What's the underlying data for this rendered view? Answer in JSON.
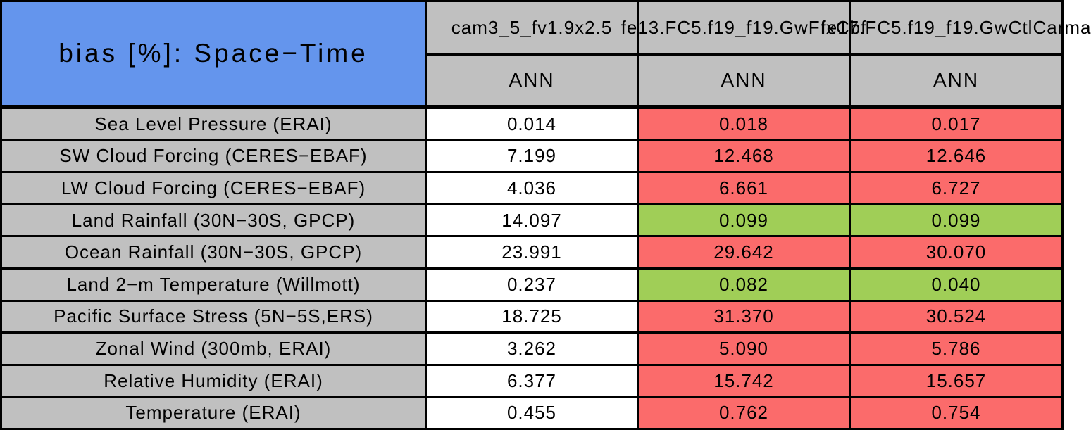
{
  "chart_data": {
    "type": "table",
    "title": "bias [%]: Space−Time",
    "units": "%",
    "column_headers": [
      "cam3_5_fv1.9x2.5",
      "fe13.FC5.f19_f19.GwFfxCbf",
      "fe17.FC5.f19_f19.GwCtlCarma"
    ],
    "season_row": [
      "ANN",
      "ANN",
      "ANN"
    ],
    "rows": [
      {
        "label": "Sea Level Pressure (ERAI)",
        "values": [
          "0.014",
          "0.018",
          "0.017"
        ],
        "cell_colors": [
          "white",
          "red",
          "red"
        ]
      },
      {
        "label": "SW Cloud Forcing (CERES−EBAF)",
        "values": [
          "7.199",
          "12.468",
          "12.646"
        ],
        "cell_colors": [
          "white",
          "red",
          "red"
        ]
      },
      {
        "label": "LW Cloud Forcing (CERES−EBAF)",
        "values": [
          "4.036",
          "6.661",
          "6.727"
        ],
        "cell_colors": [
          "white",
          "red",
          "red"
        ]
      },
      {
        "label": "Land Rainfall (30N−30S, GPCP)",
        "values": [
          "14.097",
          "0.099",
          "0.099"
        ],
        "cell_colors": [
          "white",
          "green",
          "green"
        ]
      },
      {
        "label": "Ocean Rainfall (30N−30S, GPCP)",
        "values": [
          "23.991",
          "29.642",
          "30.070"
        ],
        "cell_colors": [
          "white",
          "red",
          "red"
        ]
      },
      {
        "label": "Land 2−m Temperature (Willmott)",
        "values": [
          "0.237",
          "0.082",
          "0.040"
        ],
        "cell_colors": [
          "white",
          "green",
          "green"
        ]
      },
      {
        "label": "Pacific Surface Stress (5N−5S,ERS)",
        "values": [
          "18.725",
          "31.370",
          "30.524"
        ],
        "cell_colors": [
          "white",
          "red",
          "red"
        ]
      },
      {
        "label": "Zonal Wind (300mb, ERAI)",
        "values": [
          "3.262",
          "5.090",
          "5.786"
        ],
        "cell_colors": [
          "white",
          "red",
          "red"
        ]
      },
      {
        "label": "Relative Humidity (ERAI)",
        "values": [
          "6.377",
          "15.742",
          "15.657"
        ],
        "cell_colors": [
          "white",
          "red",
          "red"
        ]
      },
      {
        "label": "Temperature (ERAI)",
        "values": [
          "0.455",
          "0.762",
          "0.754"
        ],
        "cell_colors": [
          "white",
          "red",
          "red"
        ]
      }
    ],
    "colors": {
      "title_bg": "#6495ED",
      "header_bg": "#C0C0C0",
      "label_bg": "#C0C0C0",
      "value_red": "#FB6B6B",
      "value_green": "#A0CE57",
      "value_white": "#FFFFFF",
      "border": "#000000"
    },
    "layout": {
      "grid": "on",
      "header_rows": 2,
      "data_rows": 10,
      "value_columns": 3
    }
  }
}
